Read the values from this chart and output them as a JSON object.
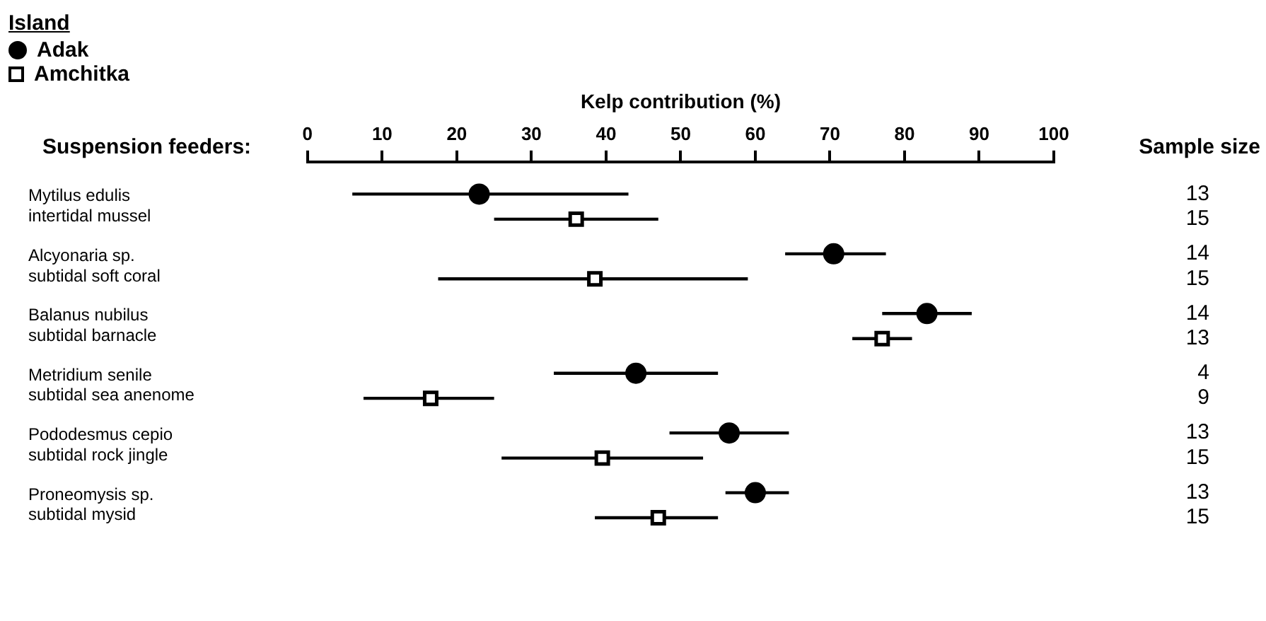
{
  "chart_data": {
    "type": "scatter",
    "orientation": "horizontal",
    "xlabel": "Kelp contribution (%)",
    "legend_title": "Island",
    "legend": "top left",
    "grid": false,
    "categories": [
      "Mytilus edulis\nintertidal mussel",
      "Alcyonaria sp.\nsubtidal soft coral",
      "Balanus nubilus\nsubtidal barnacle",
      "Metridium senile\nsubtidal sea anenome",
      "Pododesmus cepio\nsubtidal rock jingle",
      "Proneomysis sp.\nsubtidal mysid"
    ],
    "xlim": [
      0,
      100
    ],
    "xticks": [
      0,
      10,
      20,
      30,
      40,
      50,
      60,
      70,
      80,
      90,
      100
    ],
    "series": [
      {
        "name": "Adak",
        "color": "#000000",
        "marker": "circle",
        "values": [
          23,
          70.5,
          83,
          44,
          56.5,
          60
        ],
        "errors": [
          [
            6,
            43
          ],
          [
            64,
            77.5
          ],
          [
            77,
            89
          ],
          [
            33,
            55
          ],
          [
            48.5,
            64.5
          ],
          [
            56,
            64.5
          ]
        ]
      },
      {
        "name": "Amchitka",
        "color": "#000000",
        "marker": "square",
        "values": [
          36,
          38.5,
          77,
          16.5,
          39.5,
          47
        ],
        "errors": [
          [
            25,
            47
          ],
          [
            17.5,
            59
          ],
          [
            73,
            81
          ],
          [
            7.5,
            25
          ],
          [
            26,
            53
          ],
          [
            38.5,
            55
          ]
        ]
      }
    ],
    "annotations": [
      "Suspension feeders:",
      "Sample size",
      "13",
      "15",
      "14",
      "15",
      "14",
      "13",
      "4",
      "9",
      "13",
      "15",
      "13",
      "15"
    ]
  }
}
